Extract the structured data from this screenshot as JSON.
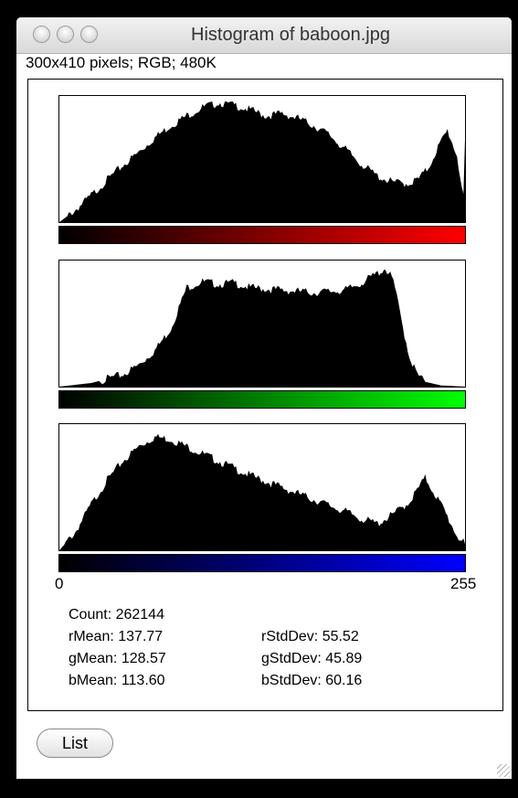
{
  "window": {
    "title": "Histogram of baboon.jpg",
    "info": "300x410 pixels; RGB; 480K"
  },
  "axis": {
    "min_label": "0",
    "max_label": "255"
  },
  "stats": {
    "count": "Count: 262144",
    "rMean": "rMean: 137.77",
    "gMean": "gMean: 128.57",
    "bMean": "bMean: 113.60",
    "rStdDev": "rStdDev: 55.52",
    "gStdDev": "gStdDev: 45.89",
    "bStdDev": "bStdDev: 60.16"
  },
  "buttons": {
    "list_label": "List"
  },
  "colors": {
    "red": "#ff0000",
    "green": "#00ff00",
    "blue": "#0000ff",
    "fill": "#000000"
  },
  "chart_data": [
    {
      "type": "area",
      "channel": "red",
      "x": [
        0,
        10,
        20,
        30,
        40,
        50,
        60,
        70,
        80,
        90,
        100,
        110,
        120,
        130,
        140,
        150,
        160,
        170,
        180,
        190,
        200,
        210,
        220,
        226,
        232,
        238,
        244,
        250,
        254,
        255
      ],
      "y": [
        0.0,
        0.1,
        0.22,
        0.35,
        0.47,
        0.58,
        0.7,
        0.8,
        0.88,
        0.95,
        0.99,
        0.97,
        0.93,
        0.88,
        0.9,
        0.86,
        0.8,
        0.72,
        0.6,
        0.48,
        0.38,
        0.33,
        0.32,
        0.36,
        0.45,
        0.62,
        0.76,
        0.55,
        0.2,
        0.65
      ],
      "xlim": [
        0,
        255
      ]
    },
    {
      "type": "area",
      "channel": "green",
      "x": [
        0,
        20,
        40,
        50,
        60,
        70,
        80,
        90,
        100,
        110,
        120,
        140,
        160,
        180,
        190,
        200,
        205,
        210,
        215,
        220,
        225,
        230,
        240,
        255
      ],
      "y": [
        0.0,
        0.03,
        0.1,
        0.18,
        0.3,
        0.48,
        0.82,
        0.87,
        0.85,
        0.86,
        0.82,
        0.8,
        0.78,
        0.8,
        0.86,
        0.94,
        0.98,
        0.88,
        0.55,
        0.25,
        0.1,
        0.04,
        0.01,
        0.0
      ],
      "xlim": [
        0,
        255
      ]
    },
    {
      "type": "area",
      "channel": "blue",
      "x": [
        0,
        10,
        20,
        30,
        40,
        50,
        60,
        70,
        80,
        100,
        120,
        140,
        160,
        180,
        190,
        200,
        210,
        220,
        230,
        240,
        250,
        255
      ],
      "y": [
        0.0,
        0.15,
        0.38,
        0.58,
        0.74,
        0.86,
        0.94,
        0.92,
        0.86,
        0.74,
        0.62,
        0.52,
        0.42,
        0.32,
        0.26,
        0.22,
        0.3,
        0.4,
        0.6,
        0.38,
        0.12,
        0.05
      ],
      "xlim": [
        0,
        255
      ]
    }
  ]
}
